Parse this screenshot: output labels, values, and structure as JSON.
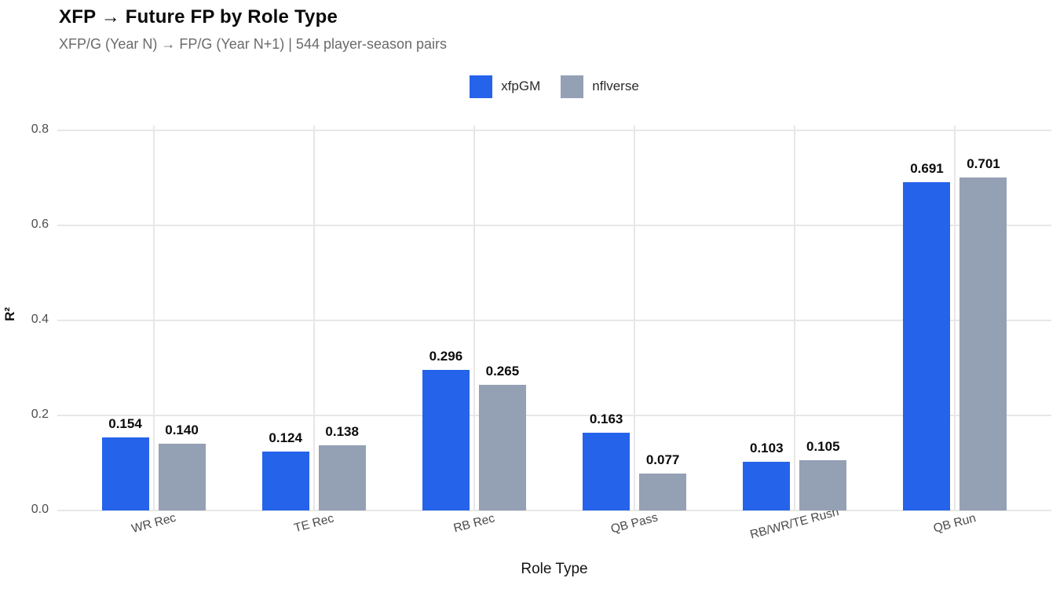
{
  "chart_data": {
    "type": "bar",
    "title": "XFP → Future FP by Role Type",
    "subtitle": "XFP/G (Year N) → FP/G (Year N+1) | 544 player-season pairs",
    "xlabel": "Role Type",
    "ylabel": "R²",
    "categories": [
      "WR Rec",
      "TE Rec",
      "RB Rec",
      "QB Pass",
      "RB/WR/TE Rush",
      "QB Run"
    ],
    "series": [
      {
        "name": "xfpGM",
        "color": "#2563EB",
        "values": [
          0.154,
          0.124,
          0.296,
          0.163,
          0.103,
          0.691
        ]
      },
      {
        "name": "nflverse",
        "color": "#94A0B4",
        "values": [
          0.14,
          0.138,
          0.265,
          0.077,
          0.105,
          0.701
        ]
      }
    ],
    "value_label_decimals": 3,
    "ylim": [
      0,
      0.8
    ],
    "yticks": [
      0.0,
      0.2,
      0.4,
      0.6,
      0.8
    ],
    "grid": "major-on",
    "legend_position": "top-center",
    "colors": {
      "grid": "#e7e7e7",
      "tick_text": "#4d4d4d",
      "subtitle_text": "#6a6a6a",
      "title_text": "#0a0a0a",
      "value_label_text": "#0b0b0b"
    }
  }
}
